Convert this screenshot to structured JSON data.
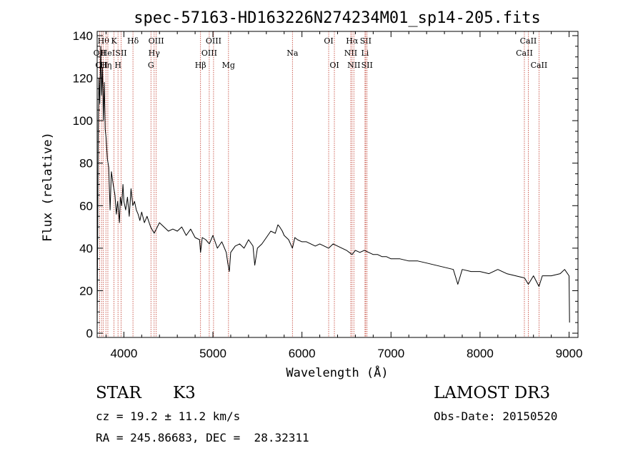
{
  "chart_data": {
    "type": "line",
    "title": "spec-57163-HD163226N274234M01_sp14-205.fits",
    "xlabel": "Wavelength (Å)",
    "ylabel": "Flux (relative)",
    "xlim": [
      3700,
      9100
    ],
    "ylim": [
      -2,
      142
    ],
    "x_ticks": [
      4000,
      5000,
      6000,
      7000,
      8000,
      9000
    ],
    "y_ticks": [
      0,
      20,
      40,
      60,
      80,
      100,
      120,
      140
    ],
    "grid": false,
    "series": [
      {
        "name": "flux",
        "color": "#000000",
        "points": [
          [
            3700,
            0
          ],
          [
            3705,
            40
          ],
          [
            3712,
            95
          ],
          [
            3720,
            120
          ],
          [
            3730,
            108
          ],
          [
            3740,
            135
          ],
          [
            3750,
            112
          ],
          [
            3760,
            125
          ],
          [
            3770,
            100
          ],
          [
            3780,
            118
          ],
          [
            3790,
            96
          ],
          [
            3800,
            92
          ],
          [
            3815,
            82
          ],
          [
            3830,
            78
          ],
          [
            3845,
            58
          ],
          [
            3860,
            76
          ],
          [
            3880,
            70
          ],
          [
            3900,
            65
          ],
          [
            3915,
            56
          ],
          [
            3930,
            62
          ],
          [
            3950,
            52
          ],
          [
            3960,
            64
          ],
          [
            3975,
            60
          ],
          [
            3990,
            70
          ],
          [
            4000,
            62
          ],
          [
            4020,
            58
          ],
          [
            4040,
            64
          ],
          [
            4060,
            55
          ],
          [
            4080,
            68
          ],
          [
            4100,
            60
          ],
          [
            4120,
            62
          ],
          [
            4140,
            58
          ],
          [
            4160,
            56
          ],
          [
            4180,
            53
          ],
          [
            4200,
            57
          ],
          [
            4230,
            52
          ],
          [
            4260,
            55
          ],
          [
            4300,
            50
          ],
          [
            4340,
            47
          ],
          [
            4400,
            52
          ],
          [
            4450,
            50
          ],
          [
            4500,
            48
          ],
          [
            4550,
            49
          ],
          [
            4600,
            48
          ],
          [
            4650,
            50
          ],
          [
            4700,
            46
          ],
          [
            4750,
            49
          ],
          [
            4800,
            45
          ],
          [
            4850,
            44
          ],
          [
            4861,
            38
          ],
          [
            4880,
            45
          ],
          [
            4920,
            44
          ],
          [
            4960,
            42
          ],
          [
            5000,
            46
          ],
          [
            5050,
            40
          ],
          [
            5100,
            43
          ],
          [
            5150,
            38
          ],
          [
            5167,
            33
          ],
          [
            5184,
            29
          ],
          [
            5200,
            38
          ],
          [
            5250,
            41
          ],
          [
            5300,
            42
          ],
          [
            5350,
            40
          ],
          [
            5400,
            44
          ],
          [
            5450,
            41
          ],
          [
            5470,
            32
          ],
          [
            5500,
            40
          ],
          [
            5550,
            42
          ],
          [
            5600,
            45
          ],
          [
            5650,
            48
          ],
          [
            5700,
            47
          ],
          [
            5730,
            51
          ],
          [
            5750,
            50
          ],
          [
            5780,
            48
          ],
          [
            5800,
            46
          ],
          [
            5850,
            44
          ],
          [
            5893,
            40
          ],
          [
            5920,
            45
          ],
          [
            5950,
            44
          ],
          [
            6000,
            43
          ],
          [
            6050,
            43
          ],
          [
            6100,
            42
          ],
          [
            6150,
            41
          ],
          [
            6200,
            42
          ],
          [
            6250,
            41
          ],
          [
            6300,
            40
          ],
          [
            6350,
            42
          ],
          [
            6400,
            41
          ],
          [
            6450,
            40
          ],
          [
            6500,
            39
          ],
          [
            6563,
            37
          ],
          [
            6600,
            39
          ],
          [
            6650,
            38
          ],
          [
            6700,
            39
          ],
          [
            6750,
            38
          ],
          [
            6800,
            37
          ],
          [
            6850,
            37
          ],
          [
            6900,
            36
          ],
          [
            6950,
            36
          ],
          [
            7000,
            35
          ],
          [
            7100,
            35
          ],
          [
            7200,
            34
          ],
          [
            7300,
            34
          ],
          [
            7400,
            33
          ],
          [
            7500,
            32
          ],
          [
            7600,
            31
          ],
          [
            7700,
            30
          ],
          [
            7750,
            23
          ],
          [
            7800,
            30
          ],
          [
            7900,
            29
          ],
          [
            8000,
            29
          ],
          [
            8100,
            28
          ],
          [
            8200,
            30
          ],
          [
            8300,
            28
          ],
          [
            8400,
            27
          ],
          [
            8500,
            26
          ],
          [
            8542,
            23
          ],
          [
            8600,
            27
          ],
          [
            8662,
            22
          ],
          [
            8700,
            27
          ],
          [
            8800,
            27
          ],
          [
            8900,
            28
          ],
          [
            8950,
            30
          ],
          [
            9000,
            27
          ],
          [
            9005,
            5
          ]
        ]
      }
    ],
    "line_markers": [
      {
        "wavelength": 3728,
        "label": "OII",
        "row": 2
      },
      {
        "wavelength": 3750,
        "label": "OII",
        "row": 3
      },
      {
        "wavelength": 3770,
        "label": "Hθ",
        "row": 1
      },
      {
        "wavelength": 3798,
        "label": "Hη",
        "row": 3
      },
      {
        "wavelength": 3820,
        "label": "HeI",
        "row": 2
      },
      {
        "wavelength": 3889,
        "label": "K",
        "row": 1
      },
      {
        "wavelength": 3934,
        "label": "H",
        "row": 3
      },
      {
        "wavelength": 3969,
        "label": "SII",
        "row": 2
      },
      {
        "wavelength": 4102,
        "label": "Hδ",
        "row": 1
      },
      {
        "wavelength": 4304,
        "label": "G",
        "row": 3
      },
      {
        "wavelength": 4340,
        "label": "Hγ",
        "row": 2
      },
      {
        "wavelength": 4363,
        "label": "OIII",
        "row": 1
      },
      {
        "wavelength": 4861,
        "label": "Hβ",
        "row": 3
      },
      {
        "wavelength": 4959,
        "label": "OIII",
        "row": 2
      },
      {
        "wavelength": 5007,
        "label": "OIII",
        "row": 1
      },
      {
        "wavelength": 5175,
        "label": "Mg",
        "row": 3
      },
      {
        "wavelength": 5893,
        "label": "Na",
        "row": 2
      },
      {
        "wavelength": 6300,
        "label": "OI",
        "row": 1
      },
      {
        "wavelength": 6364,
        "label": "OI",
        "row": 3
      },
      {
        "wavelength": 6548,
        "label": "NII",
        "row": 2
      },
      {
        "wavelength": 6563,
        "label": "Hα",
        "row": 1
      },
      {
        "wavelength": 6583,
        "label": "NII",
        "row": 3
      },
      {
        "wavelength": 6708,
        "label": "Li",
        "row": 2
      },
      {
        "wavelength": 6716,
        "label": "SII",
        "row": 1
      },
      {
        "wavelength": 6731,
        "label": "SII",
        "row": 3
      },
      {
        "wavelength": 8498,
        "label": "CaII",
        "row": 2
      },
      {
        "wavelength": 8542,
        "label": "CaII",
        "row": 1
      },
      {
        "wavelength": 8662,
        "label": "CaII",
        "row": 3
      }
    ],
    "marker_color": "#c0392b"
  },
  "info": {
    "object_class": "STAR",
    "subclass": "K3",
    "survey": "LAMOST DR3",
    "cz": "cz = 19.2 ± 11.2 km/s",
    "obs_date": "Obs-Date: 20150520",
    "coords": "RA = 245.86683, DEC =  28.32311"
  }
}
